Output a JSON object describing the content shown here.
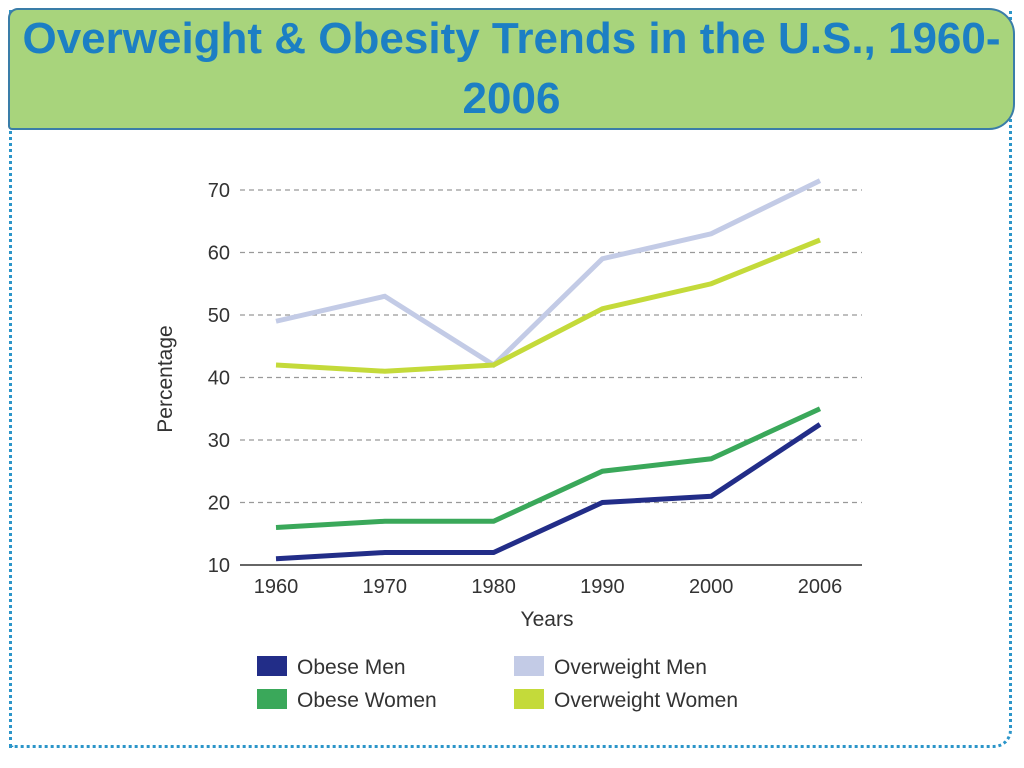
{
  "slide": {
    "title": "Overweight & Obesity Trends in the U.S., 1960-2006"
  },
  "colors": {
    "title_bg": "#a8d47c",
    "title_text": "#1c7fc4",
    "frame": "#2b95c9"
  },
  "chart_data": {
    "type": "line",
    "title": "",
    "xlabel": "Years",
    "ylabel": "Percentage",
    "categories": [
      "1960",
      "1970",
      "1980",
      "1990",
      "2000",
      "2006"
    ],
    "yticks": [
      10,
      20,
      30,
      40,
      50,
      60,
      70
    ],
    "ylim": [
      10,
      70
    ],
    "grid": "horizontal-dashed",
    "legend_placement": "bottom",
    "series": [
      {
        "name": "Obese Men",
        "color": "#222d88",
        "values": [
          11,
          12,
          12,
          20,
          21,
          32.5
        ]
      },
      {
        "name": "Overweight Men",
        "color": "#c3cbe6",
        "values": [
          49,
          53,
          42,
          59,
          63,
          71.5
        ]
      },
      {
        "name": "Obese Women",
        "color": "#3aa85a",
        "values": [
          16,
          17,
          17,
          25,
          27,
          35
        ]
      },
      {
        "name": "Overweight Women",
        "color": "#c4da3a",
        "values": [
          42,
          41,
          42,
          51,
          55,
          62
        ]
      }
    ]
  }
}
